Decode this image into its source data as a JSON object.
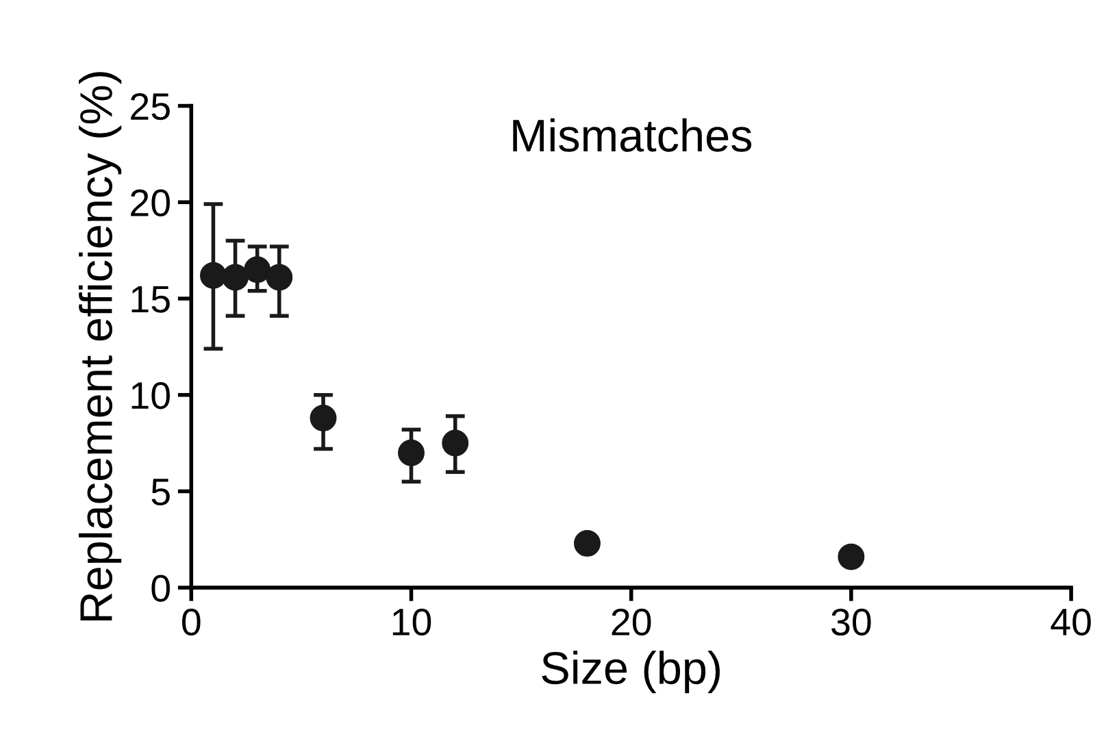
{
  "chart_data": {
    "type": "scatter",
    "title": "Mismatches",
    "xlabel": "Size (bp)",
    "ylabel": "Replacement efficiency (%)",
    "x": [
      1,
      2,
      3,
      4,
      6,
      10,
      12,
      18,
      30
    ],
    "values": [
      16.2,
      16.1,
      16.5,
      16.1,
      8.8,
      7.0,
      7.5,
      2.3,
      1.6
    ],
    "errors": [
      [
        12.4,
        19.9
      ],
      [
        14.1,
        18.0
      ],
      [
        15.4,
        17.7
      ],
      [
        14.1,
        17.7
      ],
      [
        7.2,
        10.0
      ],
      [
        5.5,
        8.2
      ],
      [
        6.0,
        8.9
      ],
      null,
      null
    ],
    "color": "#1a1a1a",
    "marker": "circle",
    "xlim": [
      0,
      40
    ],
    "xticks": [
      0,
      10,
      20,
      30,
      40
    ],
    "ylim": [
      0,
      25
    ],
    "yticks": [
      0,
      5,
      10,
      15,
      20,
      25
    ],
    "grid": false
  }
}
